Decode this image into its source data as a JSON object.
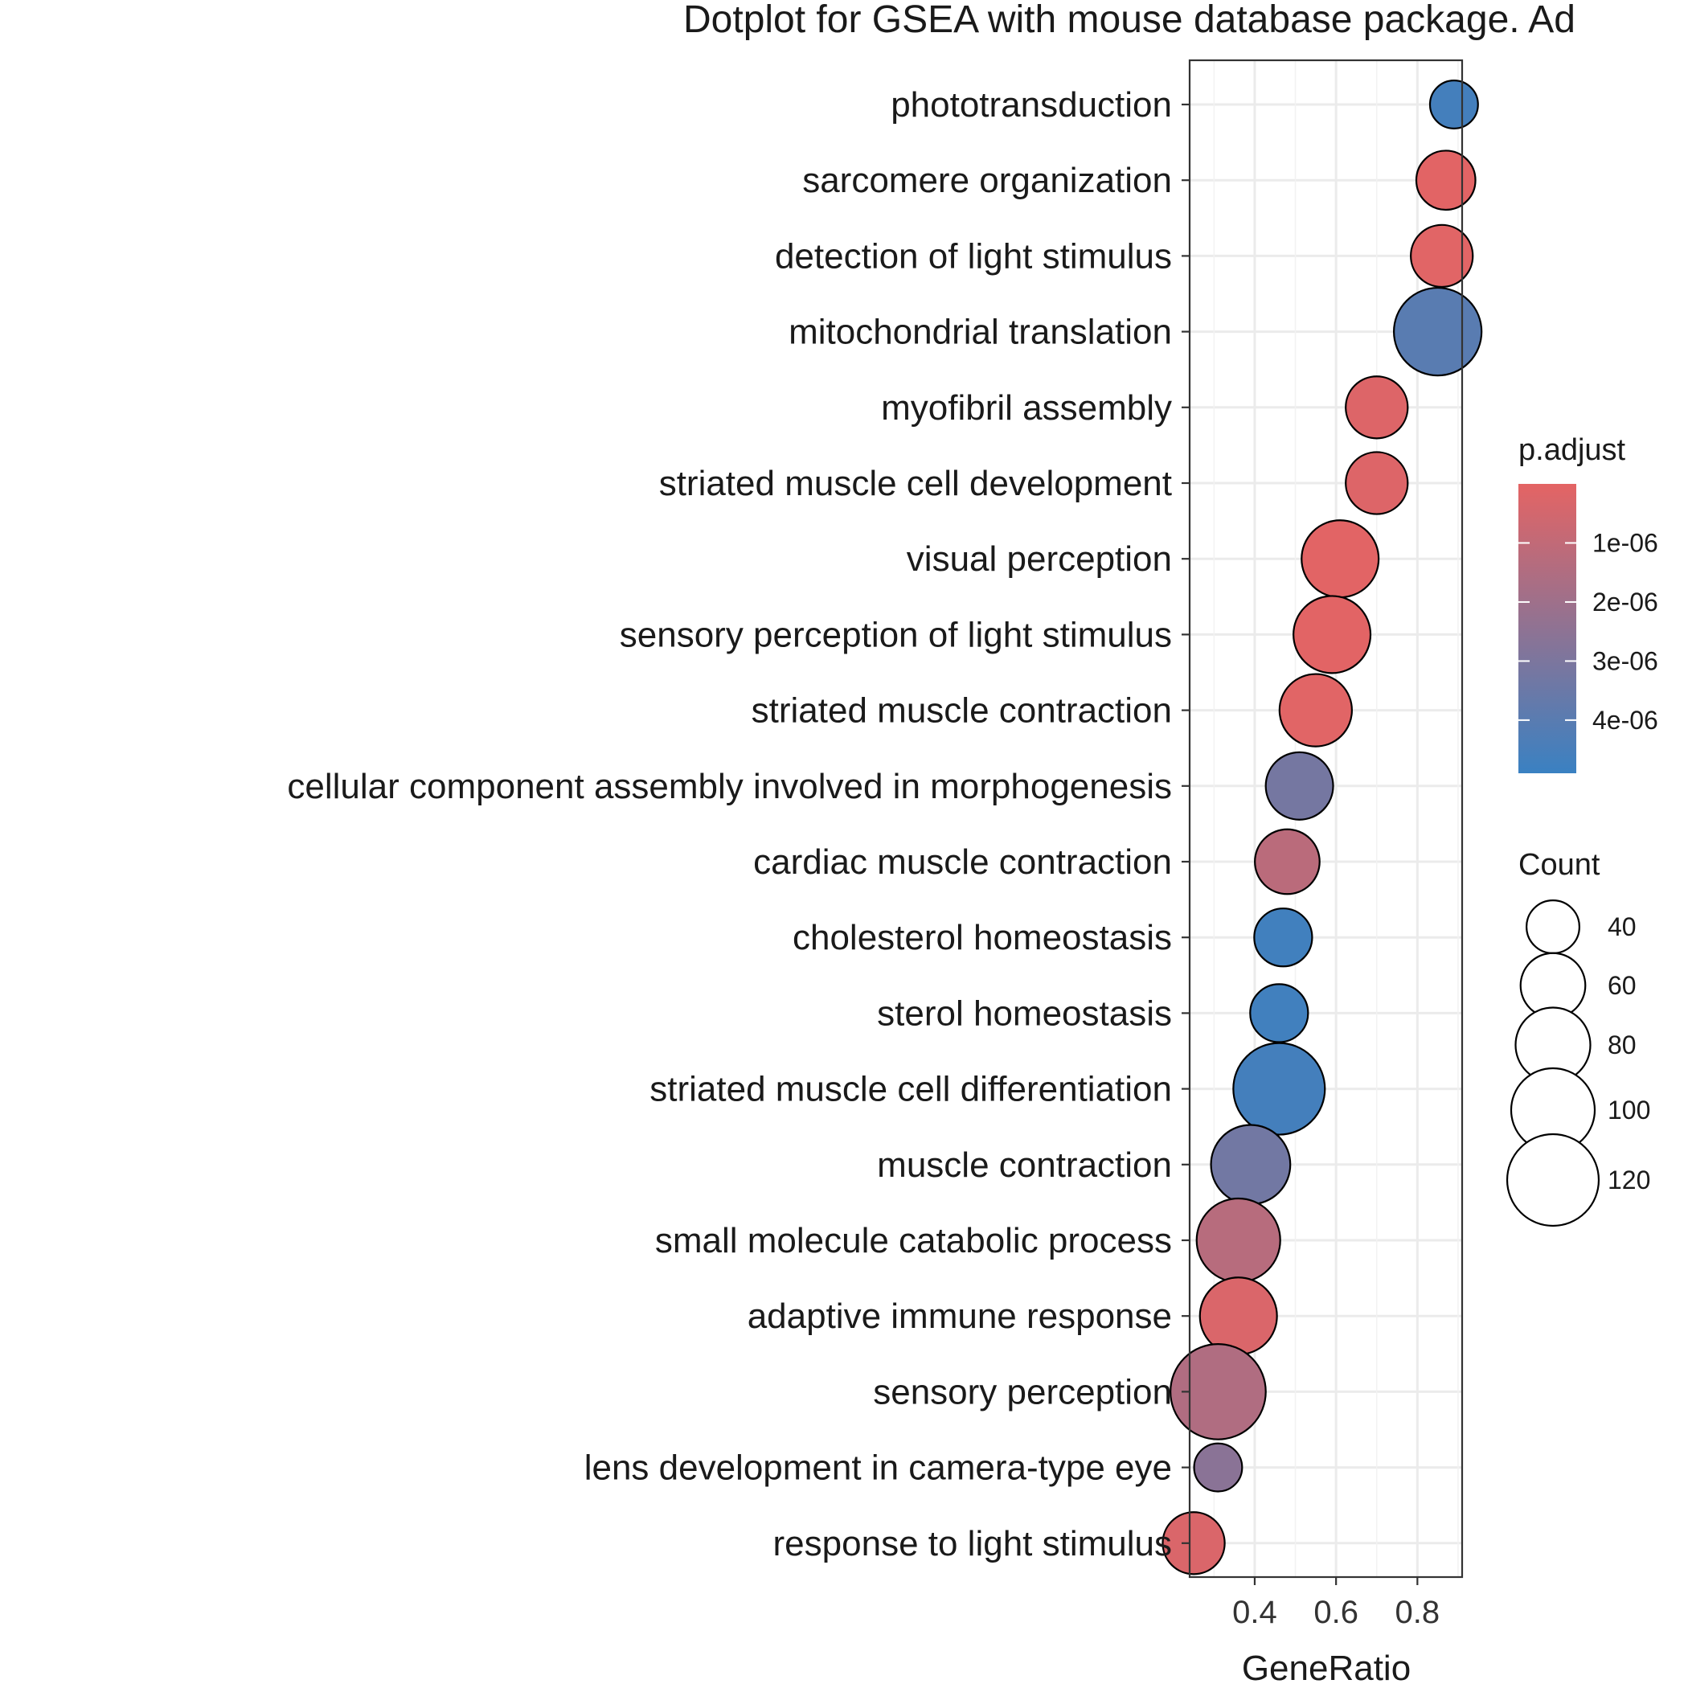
{
  "chart_data": {
    "type": "scatter",
    "title": "Dotplot for GSEA with mouse database package. Ad",
    "xlabel": "GeneRatio",
    "ylabel": "",
    "xlim": [
      0.24,
      0.91
    ],
    "xticks": [
      {
        "value": 0.4,
        "label": "0.4"
      },
      {
        "value": 0.6,
        "label": "0.6"
      },
      {
        "value": 0.8,
        "label": "0.8"
      }
    ],
    "grid": true,
    "terms": [
      {
        "label": "phototransduction",
        "gene_ratio": 0.89,
        "count": 33,
        "p_adjust": 4.6e-06
      },
      {
        "label": "sarcomere organization",
        "gene_ratio": 0.87,
        "count": 50,
        "p_adjust": 6e-08
      },
      {
        "label": "detection of light stimulus",
        "gene_ratio": 0.86,
        "count": 55,
        "p_adjust": 1e-07
      },
      {
        "label": "mitochondrial translation",
        "gene_ratio": 0.85,
        "count": 110,
        "p_adjust": 4e-06
      },
      {
        "label": "myofibril assembly",
        "gene_ratio": 0.7,
        "count": 55,
        "p_adjust": 2e-07
      },
      {
        "label": "striated muscle cell development",
        "gene_ratio": 0.7,
        "count": 55,
        "p_adjust": 2e-07
      },
      {
        "label": "visual perception",
        "gene_ratio": 0.61,
        "count": 85,
        "p_adjust": 5e-08
      },
      {
        "label": "sensory perception of light stimulus",
        "gene_ratio": 0.59,
        "count": 85,
        "p_adjust": 5e-08
      },
      {
        "label": "striated muscle contraction",
        "gene_ratio": 0.55,
        "count": 75,
        "p_adjust": 1e-07
      },
      {
        "label": "cellular component assembly involved in morphogenesis",
        "gene_ratio": 0.51,
        "count": 65,
        "p_adjust": 3.2e-06
      },
      {
        "label": "cardiac muscle contraction",
        "gene_ratio": 0.48,
        "count": 60,
        "p_adjust": 1.2e-06
      },
      {
        "label": "cholesterol homeostasis",
        "gene_ratio": 0.47,
        "count": 48,
        "p_adjust": 4.7e-06
      },
      {
        "label": "sterol homeostasis",
        "gene_ratio": 0.46,
        "count": 48,
        "p_adjust": 4.7e-06
      },
      {
        "label": "striated muscle cell differentiation",
        "gene_ratio": 0.46,
        "count": 120,
        "p_adjust": 4.6e-06
      },
      {
        "label": "muscle contraction",
        "gene_ratio": 0.39,
        "count": 90,
        "p_adjust": 3.3e-06
      },
      {
        "label": "small molecule catabolic process",
        "gene_ratio": 0.36,
        "count": 100,
        "p_adjust": 1.3e-06
      },
      {
        "label": "adaptive immune response",
        "gene_ratio": 0.36,
        "count": 85,
        "p_adjust": 3e-07
      },
      {
        "label": "sensory perception",
        "gene_ratio": 0.31,
        "count": 130,
        "p_adjust": 1.5e-06
      },
      {
        "label": "lens development in camera-type eye",
        "gene_ratio": 0.31,
        "count": 33,
        "p_adjust": 2.6e-06
      },
      {
        "label": "response to light stimulus",
        "gene_ratio": 0.25,
        "count": 55,
        "p_adjust": 3e-07
      }
    ],
    "legend": {
      "color": {
        "title": "p.adjust",
        "range": [
          0,
          4.9e-06
        ],
        "color_low": "#E46464",
        "color_high": "#3A81C2",
        "ticks": [
          {
            "value": 1e-06,
            "label": "1e-06"
          },
          {
            "value": 2e-06,
            "label": "2e-06"
          },
          {
            "value": 3e-06,
            "label": "3e-06"
          },
          {
            "value": 4e-06,
            "label": "4e-06"
          }
        ]
      },
      "size": {
        "title": "Count",
        "items": [
          {
            "value": 40,
            "label": "40"
          },
          {
            "value": 60,
            "label": "60"
          },
          {
            "value": 80,
            "label": "80"
          },
          {
            "value": 100,
            "label": "100"
          },
          {
            "value": 120,
            "label": "120"
          }
        ]
      },
      "placement": "right"
    }
  }
}
